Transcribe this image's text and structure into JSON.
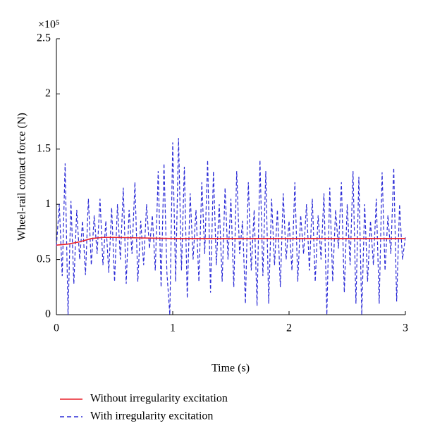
{
  "chart_data": {
    "type": "line",
    "x_label": "Time (s)",
    "y_label": "Wheel-rail contact force (N)",
    "y_scale_label": "×10⁵",
    "xlim": [
      0,
      3
    ],
    "xticks": [
      0,
      1,
      2,
      3
    ],
    "ylim": [
      0,
      2.5
    ],
    "yticks": [
      0,
      0.5,
      1,
      1.5,
      2,
      2.5
    ],
    "legend": "bottom-left",
    "series": [
      {
        "name": "Without irregularity excitation",
        "color": "#e8202a",
        "dash": "solid",
        "x": [
          0,
          0.1,
          0.2,
          0.3,
          0.4,
          0.5,
          1,
          1.5,
          2,
          2.5,
          3
        ],
        "values": [
          0.63,
          0.64,
          0.66,
          0.69,
          0.7,
          0.7,
          0.69,
          0.69,
          0.69,
          0.69,
          0.69
        ]
      },
      {
        "name": "With irregularity excitation",
        "color": "#2b2bd6",
        "dash": "dashed",
        "x": [
          0,
          0.025,
          0.05,
          0.075,
          0.1,
          0.125,
          0.15,
          0.175,
          0.2,
          0.225,
          0.25,
          0.275,
          0.3,
          0.325,
          0.35,
          0.375,
          0.4,
          0.425,
          0.45,
          0.475,
          0.5,
          0.525,
          0.55,
          0.575,
          0.6,
          0.625,
          0.65,
          0.675,
          0.7,
          0.725,
          0.75,
          0.775,
          0.8,
          0.825,
          0.85,
          0.875,
          0.9,
          0.925,
          0.95,
          0.975,
          1,
          1.025,
          1.05,
          1.075,
          1.1,
          1.125,
          1.15,
          1.175,
          1.2,
          1.225,
          1.25,
          1.275,
          1.3,
          1.325,
          1.35,
          1.375,
          1.4,
          1.425,
          1.45,
          1.475,
          1.5,
          1.525,
          1.55,
          1.575,
          1.6,
          1.625,
          1.65,
          1.675,
          1.7,
          1.725,
          1.75,
          1.775,
          1.8,
          1.825,
          1.85,
          1.875,
          1.9,
          1.925,
          1.95,
          1.975,
          2,
          2.025,
          2.05,
          2.075,
          2.1,
          2.125,
          2.15,
          2.175,
          2.2,
          2.225,
          2.25,
          2.275,
          2.3,
          2.325,
          2.35,
          2.375,
          2.4,
          2.425,
          2.45,
          2.475,
          2.5,
          2.525,
          2.55,
          2.575,
          2.6,
          2.625,
          2.65,
          2.675,
          2.7,
          2.725,
          2.75,
          2.775,
          2.8,
          2.825,
          2.85,
          2.875,
          2.9,
          2.925,
          2.95,
          2.975,
          3
        ],
        "values": [
          0.62,
          1.0,
          0.35,
          1.37,
          0.0,
          1.03,
          0.28,
          0.95,
          0.5,
          0.85,
          0.36,
          1.05,
          0.45,
          0.9,
          0.55,
          1.05,
          0.45,
          0.85,
          0.38,
          0.97,
          0.3,
          1.0,
          0.5,
          1.15,
          0.28,
          0.95,
          0.55,
          1.2,
          0.3,
          0.85,
          0.45,
          1.0,
          0.6,
          0.9,
          0.4,
          1.3,
          0.25,
          1.37,
          0.38,
          0.0,
          1.56,
          0.3,
          1.6,
          0.4,
          1.34,
          0.15,
          1.1,
          0.5,
          0.95,
          0.3,
          1.2,
          0.55,
          1.4,
          0.2,
          1.3,
          0.45,
          1.0,
          0.3,
          1.15,
          0.5,
          1.05,
          0.25,
          1.3,
          0.55,
          0.85,
          0.1,
          1.2,
          0.4,
          0.95,
          0.08,
          1.4,
          0.35,
          1.3,
          0.1,
          1.05,
          0.45,
          0.95,
          0.25,
          1.1,
          0.5,
          0.85,
          0.4,
          1.2,
          0.3,
          0.9,
          0.55,
          1.0,
          0.4,
          1.05,
          0.3,
          0.9,
          0.5,
          1.1,
          0.0,
          1.15,
          0.3,
          0.95,
          0.6,
          1.2,
          0.2,
          1.0,
          0.45,
          1.3,
          0.1,
          1.25,
          0.0,
          1.0,
          0.3,
          0.85,
          0.45,
          1.05,
          0.1,
          1.29,
          0.4,
          0.9,
          0.55,
          1.33,
          0.12,
          1.0,
          0.5,
          0.7
        ]
      }
    ]
  }
}
